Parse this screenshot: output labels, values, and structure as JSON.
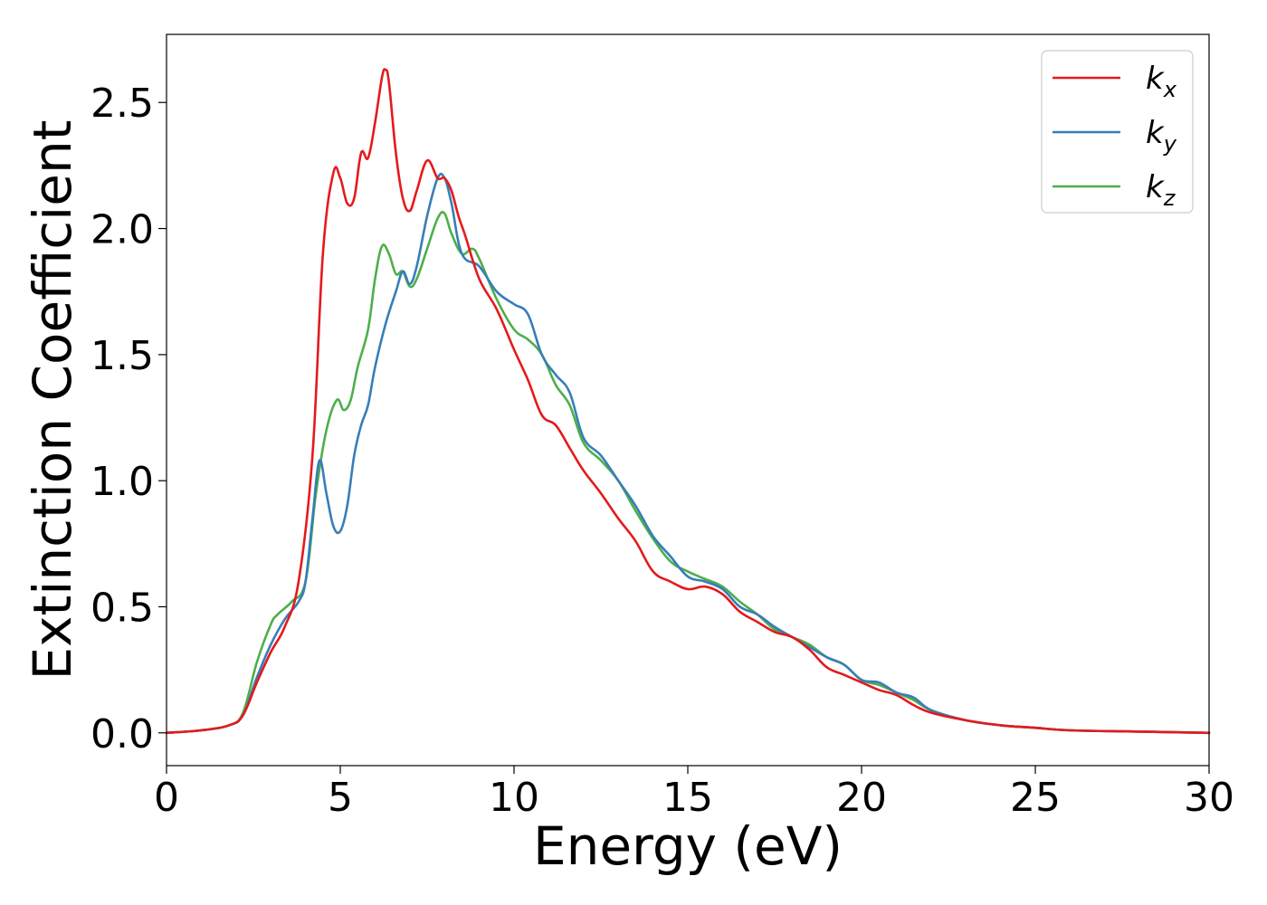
{
  "chart_data": {
    "type": "line",
    "xlabel": "Energy (eV)",
    "ylabel": "Extinction Coefficient",
    "xlim": [
      0,
      30
    ],
    "ylim": [
      -0.13,
      2.77
    ],
    "xticks": [
      0,
      5,
      10,
      15,
      20,
      25,
      30
    ],
    "xtick_labels": [
      "0",
      "5",
      "10",
      "15",
      "20",
      "25",
      "30"
    ],
    "yticks": [
      0.0,
      0.5,
      1.0,
      1.5,
      2.0,
      2.5
    ],
    "ytick_labels": [
      "0.0",
      "0.5",
      "1.0",
      "1.5",
      "2.0",
      "2.5"
    ],
    "grid": false,
    "legend_position": "top-right",
    "series": [
      {
        "name": "k_x",
        "label_main": "k",
        "label_sub": "x",
        "color": "#e41a1c",
        "x": [
          0,
          1,
          1.8,
          2.2,
          2.6,
          3.0,
          3.4,
          3.8,
          4.2,
          4.5,
          4.8,
          5.0,
          5.2,
          5.4,
          5.6,
          5.8,
          6.0,
          6.2,
          6.3,
          6.4,
          6.6,
          6.8,
          7.0,
          7.2,
          7.5,
          7.8,
          8.0,
          8.2,
          8.4,
          8.6,
          9.0,
          9.5,
          10.0,
          10.4,
          10.8,
          11.2,
          11.6,
          12.0,
          12.5,
          13.0,
          13.5,
          14.0,
          14.5,
          15.0,
          15.5,
          16.0,
          16.5,
          17.0,
          17.5,
          18.0,
          18.5,
          19.0,
          19.5,
          20.0,
          20.5,
          21.0,
          21.5,
          22.0,
          23.0,
          24.0,
          25.0,
          26.0,
          28.0,
          30.0
        ],
        "y": [
          0.0,
          0.01,
          0.03,
          0.07,
          0.2,
          0.32,
          0.42,
          0.6,
          1.1,
          1.9,
          2.22,
          2.2,
          2.1,
          2.12,
          2.3,
          2.28,
          2.42,
          2.6,
          2.63,
          2.58,
          2.3,
          2.12,
          2.07,
          2.15,
          2.27,
          2.2,
          2.2,
          2.15,
          2.05,
          1.97,
          1.8,
          1.68,
          1.52,
          1.4,
          1.26,
          1.22,
          1.13,
          1.04,
          0.95,
          0.85,
          0.76,
          0.64,
          0.6,
          0.57,
          0.58,
          0.55,
          0.48,
          0.44,
          0.4,
          0.38,
          0.33,
          0.26,
          0.23,
          0.2,
          0.17,
          0.15,
          0.11,
          0.08,
          0.05,
          0.03,
          0.02,
          0.01,
          0.005,
          0.0
        ]
      },
      {
        "name": "k_y",
        "label_main": "k",
        "label_sub": "y",
        "color": "#377eb8",
        "x": [
          0,
          1,
          1.8,
          2.2,
          2.6,
          3.0,
          3.4,
          3.8,
          4.0,
          4.2,
          4.4,
          4.6,
          4.8,
          5.0,
          5.2,
          5.4,
          5.6,
          5.8,
          6.0,
          6.3,
          6.6,
          6.8,
          7.0,
          7.2,
          7.5,
          7.8,
          8.0,
          8.2,
          8.5,
          9.0,
          9.5,
          10.0,
          10.4,
          10.8,
          11.2,
          11.6,
          12.0,
          12.5,
          13.0,
          13.5,
          14.0,
          14.5,
          15.0,
          15.5,
          16.0,
          16.5,
          17.0,
          17.5,
          18.0,
          18.5,
          19.0,
          19.5,
          20.0,
          20.5,
          21.0,
          21.5,
          22.0,
          23.0,
          24.0,
          25.0,
          26.0,
          28.0,
          30.0
        ],
        "y": [
          0.0,
          0.01,
          0.03,
          0.07,
          0.22,
          0.35,
          0.45,
          0.52,
          0.6,
          0.85,
          1.08,
          0.95,
          0.82,
          0.8,
          0.9,
          1.1,
          1.22,
          1.3,
          1.45,
          1.62,
          1.75,
          1.83,
          1.78,
          1.85,
          2.05,
          2.2,
          2.2,
          2.1,
          1.9,
          1.85,
          1.75,
          1.7,
          1.66,
          1.5,
          1.42,
          1.35,
          1.17,
          1.1,
          1.0,
          0.9,
          0.78,
          0.7,
          0.62,
          0.6,
          0.57,
          0.5,
          0.47,
          0.42,
          0.38,
          0.34,
          0.3,
          0.27,
          0.21,
          0.2,
          0.16,
          0.14,
          0.09,
          0.05,
          0.03,
          0.02,
          0.01,
          0.005,
          0.0
        ]
      },
      {
        "name": "k_z",
        "label_main": "k",
        "label_sub": "z",
        "color": "#4daf4a",
        "x": [
          0,
          1,
          1.8,
          2.2,
          2.6,
          3.0,
          3.2,
          3.6,
          4.0,
          4.3,
          4.6,
          4.9,
          5.1,
          5.3,
          5.5,
          5.8,
          6.0,
          6.2,
          6.4,
          6.6,
          6.8,
          7.0,
          7.2,
          7.5,
          7.8,
          8.0,
          8.2,
          8.5,
          8.8,
          9.0,
          9.5,
          10.0,
          10.4,
          10.8,
          11.2,
          11.6,
          12.0,
          12.5,
          13.0,
          13.5,
          14.0,
          14.5,
          15.0,
          15.5,
          16.0,
          16.5,
          17.0,
          17.5,
          18.0,
          18.5,
          19.0,
          19.5,
          20.0,
          20.5,
          21.0,
          21.5,
          22.0,
          23.0,
          24.0,
          25.0,
          26.0,
          28.0,
          30.0
        ],
        "y": [
          0.0,
          0.01,
          0.03,
          0.08,
          0.28,
          0.43,
          0.47,
          0.52,
          0.6,
          0.95,
          1.2,
          1.32,
          1.28,
          1.32,
          1.45,
          1.6,
          1.8,
          1.93,
          1.9,
          1.82,
          1.83,
          1.77,
          1.8,
          1.92,
          2.04,
          2.06,
          1.98,
          1.9,
          1.92,
          1.88,
          1.72,
          1.6,
          1.56,
          1.5,
          1.38,
          1.3,
          1.15,
          1.08,
          1.0,
          0.88,
          0.77,
          0.68,
          0.64,
          0.61,
          0.58,
          0.52,
          0.47,
          0.41,
          0.38,
          0.35,
          0.3,
          0.27,
          0.21,
          0.19,
          0.16,
          0.13,
          0.09,
          0.05,
          0.03,
          0.02,
          0.01,
          0.005,
          0.0
        ]
      }
    ]
  }
}
